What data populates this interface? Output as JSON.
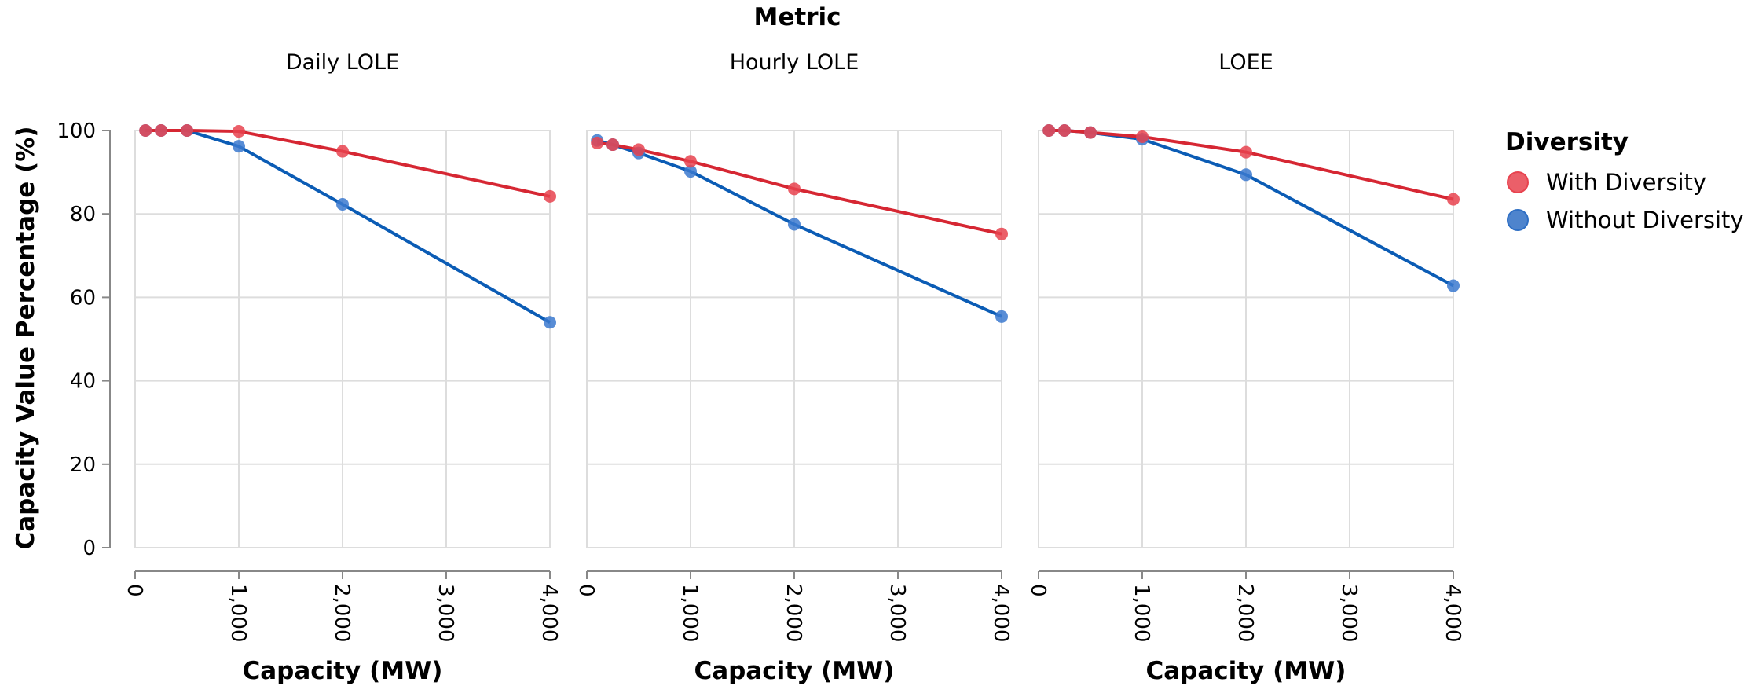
{
  "chart_data": {
    "type": "line",
    "facet_header": "Metric",
    "y_label": "Capacity Value Percentage (%)",
    "x_label": "Capacity (MW)",
    "ylim": [
      0,
      100
    ],
    "xlim": [
      0,
      4000
    ],
    "y_ticks": [
      0,
      20,
      40,
      60,
      80,
      100
    ],
    "x_ticks": [
      0,
      1000,
      2000,
      3000,
      4000
    ],
    "x_tick_labels": [
      "0",
      "1,000",
      "2,000",
      "3,000",
      "4,000"
    ],
    "grid": true,
    "legend": {
      "title": "Diversity",
      "position": "right",
      "items": [
        {
          "label": "With Diversity",
          "color": "#e8434f"
        },
        {
          "label": "Without Diversity",
          "color": "#2f6fc4"
        }
      ]
    },
    "colors": {
      "with_line": "#d62733",
      "with_point": "#e8434f",
      "without_line": "#0b5cb5",
      "without_point": "#3b79cf"
    },
    "facets": [
      {
        "title": "Daily LOLE",
        "series": [
          {
            "name": "With Diversity",
            "x": [
              100,
              250,
              500,
              1000,
              2000,
              4000
            ],
            "y": [
              100,
              100,
              100,
              99.8,
              95,
              84.2
            ]
          },
          {
            "name": "Without Diversity",
            "x": [
              100,
              250,
              500,
              1000,
              2000,
              4000
            ],
            "y": [
              100,
              100,
              100,
              96.2,
              82.3,
              54
            ]
          }
        ]
      },
      {
        "title": "Hourly LOLE",
        "series": [
          {
            "name": "With Diversity",
            "x": [
              100,
              250,
              500,
              1000,
              2000,
              4000
            ],
            "y": [
              97,
              96.6,
              95.4,
              92.6,
              86,
              75.2
            ]
          },
          {
            "name": "Without Diversity",
            "x": [
              100,
              250,
              500,
              1000,
              2000,
              4000
            ],
            "y": [
              97.6,
              96.6,
              94.6,
              90.2,
              77.5,
              55.4
            ]
          }
        ]
      },
      {
        "title": "LOEE",
        "series": [
          {
            "name": "With Diversity",
            "x": [
              100,
              250,
              500,
              1000,
              2000,
              4000
            ],
            "y": [
              100,
              100,
              99.5,
              98.5,
              94.8,
              83.5
            ]
          },
          {
            "name": "Without Diversity",
            "x": [
              100,
              250,
              500,
              1000,
              2000,
              4000
            ],
            "y": [
              100,
              100,
              99.5,
              97.9,
              89.4,
              62.8
            ]
          }
        ]
      }
    ]
  }
}
